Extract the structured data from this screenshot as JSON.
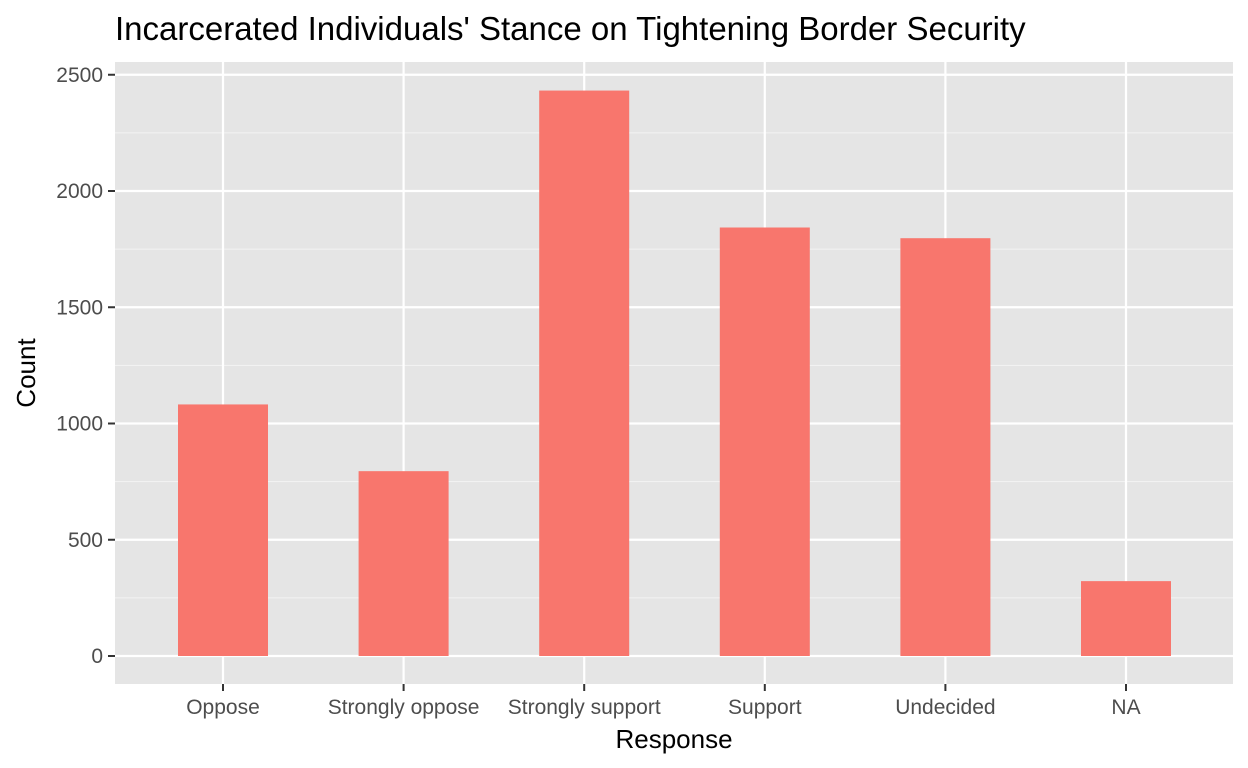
{
  "chart_data": {
    "type": "bar",
    "title": "Incarcerated Individuals' Stance on Tightening Border Security",
    "xlabel": "Response",
    "ylabel": "Count",
    "categories": [
      "Oppose",
      "Strongly oppose",
      "Strongly support",
      "Support",
      "Undecided",
      "NA"
    ],
    "values": [
      1082,
      795,
      2432,
      1843,
      1797,
      322
    ],
    "ylim": [
      0,
      2620
    ],
    "yticks": [
      0,
      500,
      1000,
      1500,
      2000,
      2500
    ],
    "grid": true,
    "legend": "none",
    "colors": {
      "bar": "#F8766D",
      "panel_background": "#E5E5E5",
      "grid_major": "#FFFFFF",
      "grid_minor": "#F2F2F2",
      "tick": "#333333"
    }
  }
}
